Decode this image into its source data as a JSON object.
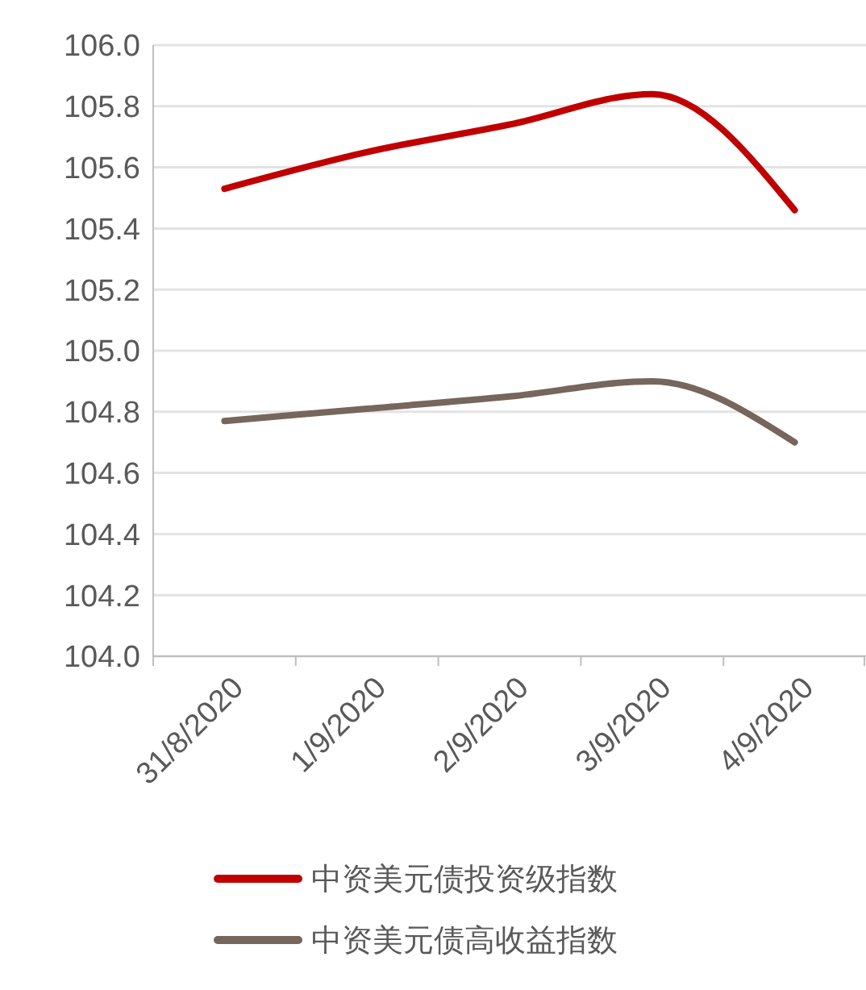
{
  "chart_data": {
    "type": "line",
    "categories": [
      "31/8/2020",
      "1/9/2020",
      "2/9/2020",
      "3/9/2020",
      "4/9/2020"
    ],
    "series": [
      {
        "name": "中资美元债投资级指数",
        "color": "#c00000",
        "values": [
          105.53,
          105.65,
          105.74,
          105.84,
          105.46
        ]
      },
      {
        "name": "中资美元债高收益指数",
        "color": "#76665c",
        "values": [
          104.77,
          104.81,
          104.85,
          104.9,
          104.7
        ]
      }
    ],
    "ylim": [
      104.0,
      106.0
    ],
    "yticks": [
      {
        "value": 104,
        "label": "104.0"
      },
      {
        "value": 104.2,
        "label": "104.2"
      },
      {
        "value": 104.4,
        "label": "104.4"
      },
      {
        "value": 104.6,
        "label": "104.6"
      },
      {
        "value": 104.8,
        "label": "104.8"
      },
      {
        "value": 105,
        "label": "105.0"
      },
      {
        "value": 105.2,
        "label": "105.2"
      },
      {
        "value": 105.4,
        "label": "105.4"
      },
      {
        "value": 105.6,
        "label": "105.6"
      },
      {
        "value": 105.8,
        "label": "105.8"
      },
      {
        "value": 106,
        "label": "106.0"
      }
    ],
    "grid": "y",
    "legend": "bottom",
    "marker": "none",
    "line_style": "solid"
  }
}
